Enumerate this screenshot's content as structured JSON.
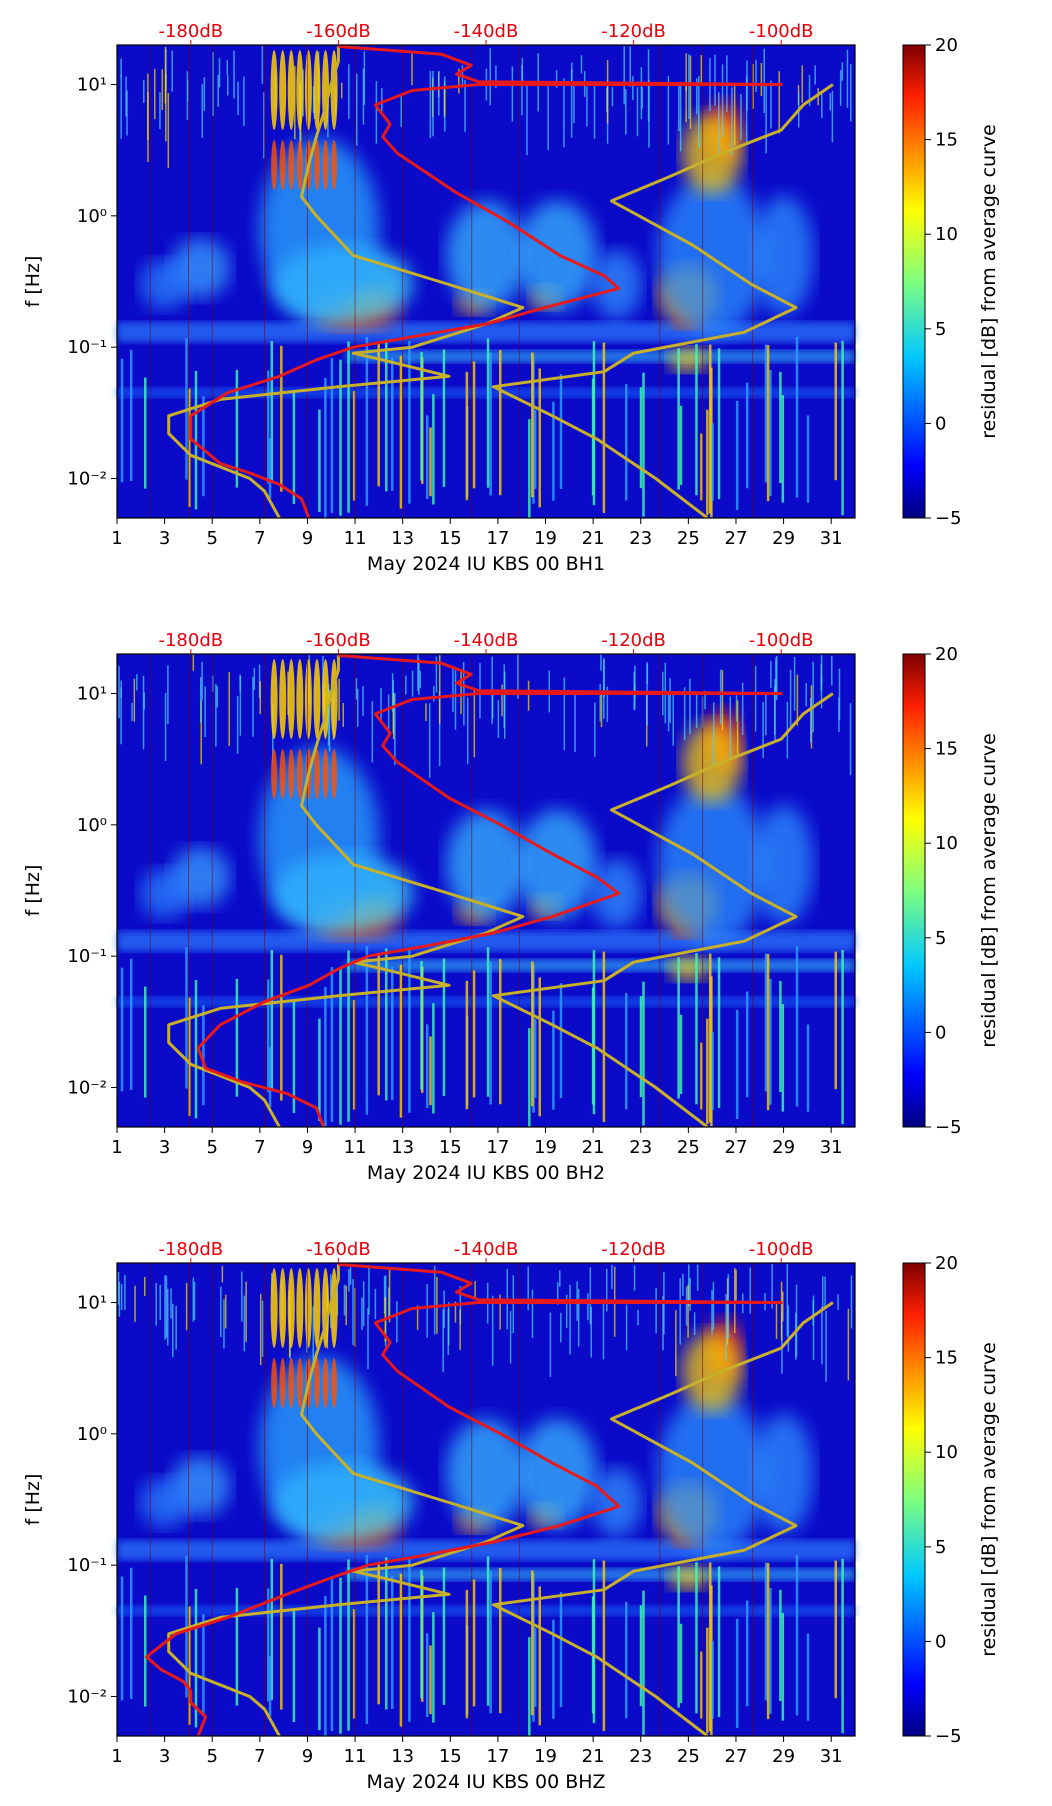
{
  "chart_data": [
    {
      "type": "heatmap",
      "xlabel": "May 2024 IU KBS 00 BH1",
      "ylabel": "f [Hz]",
      "x_ticks": [
        "1",
        "3",
        "5",
        "7",
        "9",
        "11",
        "13",
        "15",
        "17",
        "19",
        "21",
        "23",
        "25",
        "27",
        "29",
        "31"
      ],
      "x_range": [
        1,
        32
      ],
      "y_scale": "log",
      "y_ticks": [
        "10⁻²",
        "10⁻¹",
        "10⁰",
        "10¹"
      ],
      "y_range": [
        0.005,
        20
      ],
      "top_axis_labels": [
        "-180dB",
        "-160dB",
        "-140dB",
        "-120dB",
        "-100dB"
      ],
      "colorbar": {
        "label": "residual [dB] from average curve",
        "ticks": [
          "−5",
          "0",
          "5",
          "10",
          "15",
          "20"
        ],
        "range": [
          -5,
          20
        ],
        "colormap": "jet"
      },
      "colors": {
        "psd_curve": "#e8191b",
        "nlnm_nhnm": "#c8b02a"
      },
      "psd_curve": [
        [
          -164,
          0.005
        ],
        [
          -165,
          0.007
        ],
        [
          -168,
          0.009
        ],
        [
          -172,
          0.011
        ],
        [
          -176,
          0.013
        ],
        [
          -180,
          0.02
        ],
        [
          -180,
          0.03
        ],
        [
          -175,
          0.045
        ],
        [
          -168,
          0.06
        ],
        [
          -163,
          0.08
        ],
        [
          -158,
          0.1
        ],
        [
          -150,
          0.12
        ],
        [
          -140,
          0.15
        ],
        [
          -132,
          0.2
        ],
        [
          -122,
          0.28
        ],
        [
          -124,
          0.35
        ],
        [
          -130,
          0.5
        ],
        [
          -137,
          0.9
        ],
        [
          -144,
          1.5
        ],
        [
          -152,
          3
        ],
        [
          -154,
          4
        ],
        [
          -153,
          5
        ],
        [
          -155,
          7
        ],
        [
          -150,
          9
        ],
        [
          -141,
          10
        ],
        [
          -100,
          10
        ],
        [
          -141,
          10.5
        ],
        [
          -144,
          12
        ],
        [
          -142,
          14
        ],
        [
          -146,
          17
        ],
        [
          -160,
          19.5
        ]
      ]
    },
    {
      "type": "heatmap",
      "xlabel": "May 2024 IU KBS 00 BH2",
      "ylabel": "f [Hz]",
      "x_ticks": [
        "1",
        "3",
        "5",
        "7",
        "9",
        "11",
        "13",
        "15",
        "17",
        "19",
        "21",
        "23",
        "25",
        "27",
        "29",
        "31"
      ],
      "x_range": [
        1,
        32
      ],
      "y_scale": "log",
      "y_ticks": [
        "10⁻²",
        "10⁻¹",
        "10⁰",
        "10¹"
      ],
      "y_range": [
        0.005,
        20
      ],
      "top_axis_labels": [
        "-180dB",
        "-160dB",
        "-140dB",
        "-120dB",
        "-100dB"
      ],
      "colorbar": {
        "label": "residual [dB] from average curve",
        "ticks": [
          "−5",
          "0",
          "5",
          "10",
          "15",
          "20"
        ],
        "range": [
          -5,
          20
        ],
        "colormap": "jet"
      },
      "colors": {
        "psd_curve": "#e8191b",
        "nlnm_nhnm": "#c8b02a"
      },
      "psd_curve": [
        [
          -162,
          0.005
        ],
        [
          -163,
          0.007
        ],
        [
          -167,
          0.009
        ],
        [
          -173,
          0.011
        ],
        [
          -178,
          0.014
        ],
        [
          -179,
          0.02
        ],
        [
          -176,
          0.03
        ],
        [
          -170,
          0.045
        ],
        [
          -164,
          0.06
        ],
        [
          -160,
          0.08
        ],
        [
          -156,
          0.1
        ],
        [
          -148,
          0.12
        ],
        [
          -139,
          0.15
        ],
        [
          -131,
          0.2
        ],
        [
          -122,
          0.3
        ],
        [
          -125,
          0.4
        ],
        [
          -131,
          0.6
        ],
        [
          -138,
          1.0
        ],
        [
          -145,
          1.6
        ],
        [
          -152,
          3
        ],
        [
          -154,
          4
        ],
        [
          -153,
          5
        ],
        [
          -155,
          7
        ],
        [
          -150,
          9
        ],
        [
          -141,
          10
        ],
        [
          -100,
          10
        ],
        [
          -141,
          10.5
        ],
        [
          -144,
          12
        ],
        [
          -142,
          14
        ],
        [
          -146,
          17
        ],
        [
          -160,
          19.5
        ]
      ]
    },
    {
      "type": "heatmap",
      "xlabel": "May 2024 IU KBS 00 BHZ",
      "ylabel": "f [Hz]",
      "x_ticks": [
        "1",
        "3",
        "5",
        "7",
        "9",
        "11",
        "13",
        "15",
        "17",
        "19",
        "21",
        "23",
        "25",
        "27",
        "29",
        "31"
      ],
      "x_range": [
        1,
        32
      ],
      "y_scale": "log",
      "y_ticks": [
        "10⁻²",
        "10⁻¹",
        "10⁰",
        "10¹"
      ],
      "y_range": [
        0.005,
        20
      ],
      "top_axis_labels": [
        "-180dB",
        "-160dB",
        "-140dB",
        "-120dB",
        "-100dB"
      ],
      "colorbar": {
        "label": "residual [dB] from average curve",
        "ticks": [
          "−5",
          "0",
          "5",
          "10",
          "15",
          "20"
        ],
        "range": [
          -5,
          20
        ],
        "colormap": "jet"
      },
      "colors": {
        "psd_curve": "#e8191b",
        "nlnm_nhnm": "#c8b02a"
      },
      "psd_curve": [
        [
          -179,
          0.005
        ],
        [
          -178,
          0.007
        ],
        [
          -180,
          0.009
        ],
        [
          -180,
          0.011
        ],
        [
          -181,
          0.013
        ],
        [
          -184,
          0.016
        ],
        [
          -186,
          0.02
        ],
        [
          -182,
          0.03
        ],
        [
          -175,
          0.04
        ],
        [
          -167,
          0.06
        ],
        [
          -161,
          0.08
        ],
        [
          -156,
          0.1
        ],
        [
          -148,
          0.12
        ],
        [
          -139,
          0.15
        ],
        [
          -130,
          0.2
        ],
        [
          -122,
          0.28
        ],
        [
          -125,
          0.4
        ],
        [
          -131,
          0.6
        ],
        [
          -138,
          1.0
        ],
        [
          -145,
          1.6
        ],
        [
          -152,
          3
        ],
        [
          -154,
          4
        ],
        [
          -153,
          5
        ],
        [
          -155,
          7
        ],
        [
          -150,
          9
        ],
        [
          -141,
          10
        ],
        [
          -100,
          10
        ],
        [
          -141,
          10.5
        ],
        [
          -144,
          12
        ],
        [
          -142,
          14
        ],
        [
          -146,
          17
        ],
        [
          -160,
          19.5
        ]
      ]
    }
  ],
  "noise_models": {
    "nlnm": [
      [
        -168,
        0.005
      ],
      [
        -170,
        0.008
      ],
      [
        -172,
        0.01
      ],
      [
        -180,
        0.015
      ],
      [
        -183,
        0.022
      ],
      [
        -183,
        0.03
      ],
      [
        -176,
        0.04
      ],
      [
        -160,
        0.05
      ],
      [
        -145,
        0.06
      ],
      [
        -154,
        0.08
      ],
      [
        -158,
        0.09
      ],
      [
        -150,
        0.1
      ],
      [
        -140,
        0.15
      ],
      [
        -135,
        0.2
      ],
      [
        -145,
        0.3
      ],
      [
        -158,
        0.5
      ],
      [
        -163,
        1
      ],
      [
        -165,
        1.4
      ],
      [
        -164,
        2.5
      ],
      [
        -163,
        4
      ],
      [
        -162,
        6
      ],
      [
        -161,
        10
      ],
      [
        -160,
        15
      ],
      [
        -160,
        19.5
      ]
    ],
    "nhnm": [
      [
        -110,
        0.005
      ],
      [
        -117,
        0.01
      ],
      [
        -125,
        0.02
      ],
      [
        -131,
        0.03
      ],
      [
        -139,
        0.05
      ],
      [
        -124,
        0.065
      ],
      [
        -120,
        0.09
      ],
      [
        -105,
        0.13
      ],
      [
        -98,
        0.2
      ],
      [
        -104,
        0.3
      ],
      [
        -112,
        0.6
      ],
      [
        -123,
        1.3
      ],
      [
        -115,
        2
      ],
      [
        -108,
        3
      ],
      [
        -100,
        4.5
      ],
      [
        -97,
        7
      ],
      [
        -93,
        10
      ]
    ]
  }
}
